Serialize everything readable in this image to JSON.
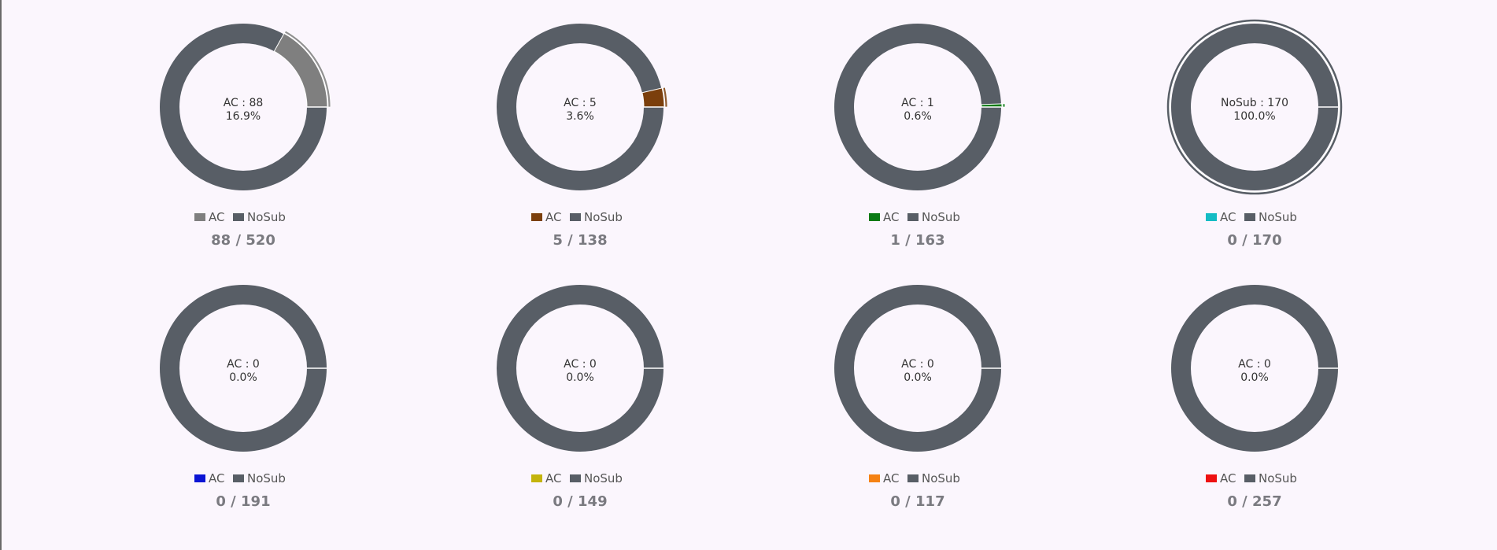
{
  "colors": {
    "background": "#fbf6fd",
    "nosub": "#585e66"
  },
  "chart_data": [
    {
      "type": "pie",
      "segments": [
        {
          "label": "AC",
          "value": 88,
          "color": "#7f7f7f"
        },
        {
          "label": "NoSub",
          "value": 432,
          "color": "#585e66"
        }
      ],
      "center_label": "AC : 88",
      "center_pct": "16.9%",
      "summary": "88 / 520",
      "legend": [
        "AC",
        "NoSub"
      ]
    },
    {
      "type": "pie",
      "segments": [
        {
          "label": "AC",
          "value": 5,
          "color": "#7b3f0c"
        },
        {
          "label": "NoSub",
          "value": 133,
          "color": "#585e66"
        }
      ],
      "center_label": "AC : 5",
      "center_pct": "3.6%",
      "summary": "5 / 138",
      "legend": [
        "AC",
        "NoSub"
      ]
    },
    {
      "type": "pie",
      "segments": [
        {
          "label": "AC",
          "value": 1,
          "color": "#0a7a14"
        },
        {
          "label": "NoSub",
          "value": 162,
          "color": "#585e66"
        }
      ],
      "center_label": "AC : 1",
      "center_pct": "0.6%",
      "summary": "1 / 163",
      "legend": [
        "AC",
        "NoSub"
      ]
    },
    {
      "type": "pie",
      "segments": [
        {
          "label": "AC",
          "value": 0,
          "color": "#14bcc4"
        },
        {
          "label": "NoSub",
          "value": 170,
          "color": "#585e66"
        }
      ],
      "center_label": "NoSub : 170",
      "center_pct": "100.0%",
      "summary": "0 / 170",
      "legend": [
        "AC",
        "NoSub"
      ]
    },
    {
      "type": "pie",
      "segments": [
        {
          "label": "AC",
          "value": 0,
          "color": "#0a14d4"
        },
        {
          "label": "NoSub",
          "value": 191,
          "color": "#585e66"
        }
      ],
      "center_label": "AC : 0",
      "center_pct": "0.0%",
      "summary": "0 / 191",
      "legend": [
        "AC",
        "NoSub"
      ]
    },
    {
      "type": "pie",
      "segments": [
        {
          "label": "AC",
          "value": 0,
          "color": "#c4b40c"
        },
        {
          "label": "NoSub",
          "value": 149,
          "color": "#585e66"
        }
      ],
      "center_label": "AC : 0",
      "center_pct": "0.0%",
      "summary": "0 / 149",
      "legend": [
        "AC",
        "NoSub"
      ]
    },
    {
      "type": "pie",
      "segments": [
        {
          "label": "AC",
          "value": 0,
          "color": "#f58214"
        },
        {
          "label": "NoSub",
          "value": 117,
          "color": "#585e66"
        }
      ],
      "center_label": "AC : 0",
      "center_pct": "0.0%",
      "summary": "0 / 117",
      "legend": [
        "AC",
        "NoSub"
      ]
    },
    {
      "type": "pie",
      "segments": [
        {
          "label": "AC",
          "value": 0,
          "color": "#ee1111"
        },
        {
          "label": "NoSub",
          "value": 257,
          "color": "#585e66"
        }
      ],
      "center_label": "AC : 0",
      "center_pct": "0.0%",
      "summary": "0 / 257",
      "legend": [
        "AC",
        "NoSub"
      ]
    }
  ]
}
